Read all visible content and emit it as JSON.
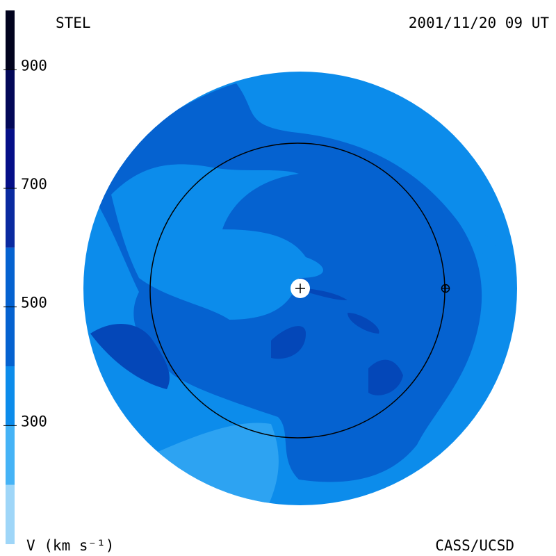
{
  "header": {
    "left": "STEL",
    "right": "2001/11/20 09 UT"
  },
  "footer": {
    "left": "V (km s⁻¹)",
    "right": "CASS/UCSD"
  },
  "colorbar": {
    "range": [
      100,
      1000
    ],
    "ticks": [
      300,
      500,
      700,
      900
    ],
    "bands": [
      {
        "from": 100,
        "to": 200,
        "color": "#9fd6f8"
      },
      {
        "from": 200,
        "to": 300,
        "color": "#45b3f6"
      },
      {
        "from": 300,
        "to": 400,
        "color": "#0c8ceb"
      },
      {
        "from": 400,
        "to": 600,
        "color": "#0562d0"
      },
      {
        "from": 600,
        "to": 700,
        "color": "#0a2aa0"
      },
      {
        "from": 700,
        "to": 800,
        "color": "#050f88"
      },
      {
        "from": 800,
        "to": 900,
        "color": "#030858"
      },
      {
        "from": 900,
        "to": 1000,
        "color": "#02031e"
      }
    ]
  }
}
